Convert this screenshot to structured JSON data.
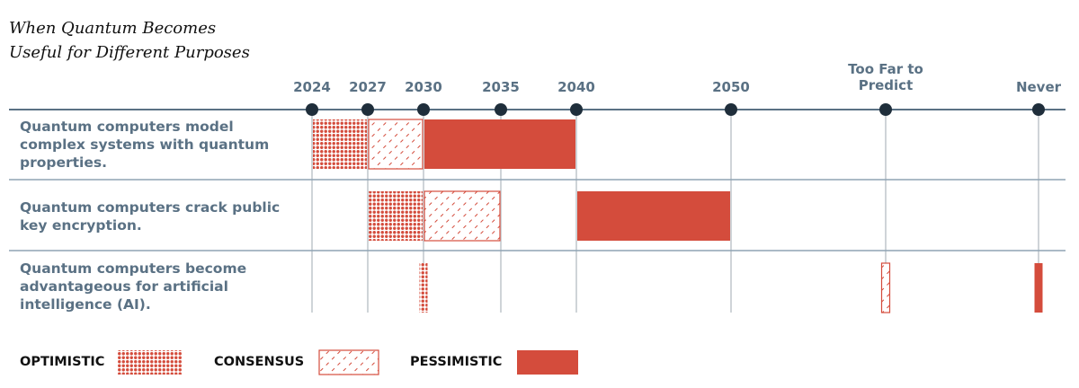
{
  "chart_data": {
    "type": "timeline",
    "title": "When Quantum Becomes Useful for Different Purposes",
    "categories": [
      "2024",
      "2027",
      "2030",
      "2035",
      "2040",
      "2050",
      "Too Far to Predict",
      "Never"
    ],
    "rows": [
      "Quantum computers model complex systems with quantum properties.",
      "Quantum computers crack public key encryption.",
      "Quantum computers become advantageous for artificial intelligence (AI)."
    ],
    "series": [
      {
        "name": "OPTIMISTIC",
        "color": "#d44c3c",
        "pattern": "dots",
        "spans": [
          {
            "start": "2024",
            "end": "2027"
          },
          {
            "start": "2027",
            "end": "2030"
          },
          {
            "start": "2030",
            "end": "2030"
          }
        ]
      },
      {
        "name": "CONSENSUS",
        "color": "#d44c3c",
        "pattern": "hatch",
        "spans": [
          {
            "start": "2027",
            "end": "2030"
          },
          {
            "start": "2030",
            "end": "2035"
          },
          {
            "start": "Too Far to Predict",
            "end": "Too Far to Predict"
          }
        ]
      },
      {
        "name": "PESSIMISTIC",
        "color": "#d44c3c",
        "pattern": "solid",
        "spans": [
          {
            "start": "2030",
            "end": "2040"
          },
          {
            "start": "2040",
            "end": "2050"
          },
          {
            "start": "Never",
            "end": "Never"
          }
        ]
      }
    ]
  }
}
